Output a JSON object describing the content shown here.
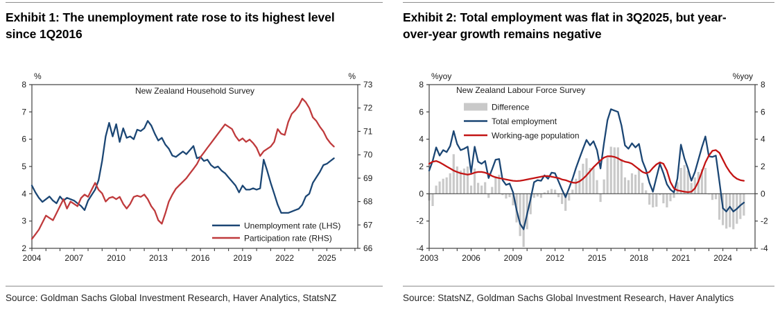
{
  "exhibits": [
    {
      "title": "Exhibit 1: The unemployment rate rose to its highest level since 1Q2016",
      "source": "Source: Goldman Sachs Global Investment Research, Haver Analytics, StatsNZ"
    },
    {
      "title": "Exhibit 2: Total employment was flat in 3Q2025, but year-over-year growth remains negative",
      "source": "Source: StatsNZ, Goldman Sachs Global Investment Research, Haver Analytics"
    }
  ],
  "colors": {
    "navy": "#1b4674",
    "red_muted": "#bf3a3c",
    "red_bright": "#c31414",
    "bar_gray": "#c9c9c9",
    "axis": "#3f3f3f",
    "zero_line": "#4d4d4d",
    "text": "#1a1a1a"
  },
  "chart_data": [
    {
      "type": "line",
      "inner_title": "New Zealand Household Survey",
      "inner_title_anchor": "middle",
      "left_axis_label": "%",
      "right_axis_label": "%",
      "xlim": [
        2004,
        2027.2
      ],
      "left_ylim": [
        2,
        8
      ],
      "right_ylim": [
        66,
        73
      ],
      "left_ticks": [
        2,
        3,
        4,
        5,
        6,
        7,
        8
      ],
      "right_ticks": [
        66,
        67,
        68,
        69,
        70,
        71,
        72,
        73
      ],
      "x_tick_step_minor": 1,
      "x_labeled_ticks": [
        2004,
        2007,
        2010,
        2013,
        2016,
        2019,
        2022,
        2025
      ],
      "zero_line": false,
      "legend_position": "bottom-right",
      "x_start": 2004.0,
      "x_step": 0.25,
      "series": [
        {
          "name": "Unemployment rate (LHS)",
          "kind": "line",
          "axis": "left",
          "color": "#1b4674",
          "values": [
            4.3,
            4.05,
            3.85,
            3.7,
            3.8,
            3.9,
            3.75,
            3.65,
            3.9,
            3.75,
            3.85,
            3.8,
            3.75,
            3.65,
            3.55,
            3.4,
            3.75,
            3.95,
            4.15,
            4.5,
            5.2,
            6.1,
            6.6,
            6.1,
            6.55,
            5.9,
            6.4,
            6.05,
            6.1,
            6.0,
            6.35,
            6.3,
            6.4,
            6.67,
            6.5,
            6.2,
            5.95,
            6.05,
            5.8,
            5.65,
            5.4,
            5.35,
            5.45,
            5.55,
            5.45,
            5.6,
            5.75,
            5.3,
            5.35,
            5.2,
            5.25,
            5.05,
            4.95,
            5.0,
            4.85,
            4.75,
            4.6,
            4.45,
            4.3,
            4.05,
            4.3,
            4.15,
            4.15,
            4.2,
            4.15,
            4.2,
            5.25,
            4.85,
            4.4,
            4.0,
            3.6,
            3.3,
            3.3,
            3.3,
            3.35,
            3.4,
            3.45,
            3.6,
            3.9,
            4.0,
            4.4,
            4.6,
            4.8,
            5.05,
            5.1,
            5.2,
            5.3
          ]
        },
        {
          "name": "Participation rate (RHS)",
          "kind": "line",
          "axis": "right",
          "color": "#bf3a3c",
          "values": [
            66.4,
            66.6,
            66.8,
            67.1,
            67.4,
            67.3,
            67.2,
            67.5,
            67.8,
            68.1,
            67.7,
            68.0,
            67.9,
            67.8,
            68.15,
            68.3,
            68.2,
            68.5,
            68.8,
            68.5,
            68.35,
            68.0,
            68.15,
            68.2,
            68.1,
            68.2,
            67.9,
            67.7,
            67.9,
            68.2,
            68.25,
            68.2,
            68.3,
            68.1,
            67.8,
            67.6,
            67.2,
            67.05,
            67.5,
            68.0,
            68.3,
            68.55,
            68.7,
            68.85,
            69.0,
            69.2,
            69.4,
            69.6,
            69.9,
            70.1,
            70.3,
            70.5,
            70.7,
            70.9,
            71.1,
            71.3,
            71.2,
            71.1,
            70.8,
            70.6,
            70.7,
            70.55,
            70.65,
            70.5,
            70.3,
            69.95,
            70.15,
            70.25,
            70.35,
            70.55,
            71.1,
            70.9,
            70.85,
            71.4,
            71.75,
            71.9,
            72.1,
            72.4,
            72.25,
            72.0,
            71.6,
            71.45,
            71.2,
            71.0,
            70.7,
            70.5,
            70.35
          ]
        }
      ]
    },
    {
      "type": "bar+line",
      "inner_title": "New Zealand Labour Force Survey",
      "inner_title_anchor": "start",
      "left_axis_label": "%yoy",
      "right_axis_label": "%yoy",
      "xlim": [
        2003,
        2026.3
      ],
      "left_ylim": [
        -4,
        8
      ],
      "right_ylim": [
        -4,
        8
      ],
      "left_ticks": [
        -4,
        -2,
        0,
        2,
        4,
        6,
        8
      ],
      "right_ticks": [
        -4,
        -2,
        0,
        2,
        4,
        6,
        8
      ],
      "x_tick_step_minor": 1,
      "x_labeled_ticks": [
        2003,
        2006,
        2009,
        2012,
        2015,
        2018,
        2021,
        2024
      ],
      "zero_line": true,
      "legend_position": "top-left",
      "x_start": 2003.0,
      "x_step": 0.25,
      "series": [
        {
          "name": "Difference",
          "kind": "bar",
          "axis": "left",
          "color": "#c9c9c9",
          "values": [
            -0.5,
            -0.9,
            0.6,
            0.9,
            1.1,
            1.2,
            1.5,
            2.9,
            2.0,
            1.7,
            1.85,
            2.0,
            0.6,
            1.85,
            0.8,
            0.6,
            0.85,
            -0.3,
            0.5,
            1.3,
            1.4,
            -0.1,
            -0.35,
            -0.25,
            -0.85,
            -2.1,
            -3.1,
            -3.9,
            -2.6,
            -1.5,
            -0.3,
            -0.2,
            -0.3,
            0.1,
            0.25,
            0.35,
            0.3,
            -0.25,
            -0.75,
            -1.25,
            -0.5,
            0.3,
            1.1,
            1.7,
            2.2,
            2.6,
            1.9,
            1.9,
            1.0,
            -0.6,
            1.05,
            2.65,
            3.45,
            3.4,
            3.4,
            2.55,
            1.2,
            1.0,
            1.5,
            1.4,
            1.85,
            0.8,
            0.25,
            -0.8,
            -1.0,
            -0.95,
            -0.1,
            -0.7,
            -1.0,
            -0.55,
            -0.3,
            0.85,
            1.9,
            2.1,
            1.7,
            0.8,
            1.2,
            1.6,
            1.8,
            1.9,
            -0.05,
            -0.45,
            -0.4,
            -1.9,
            -2.3,
            -2.55,
            -2.45,
            -2.6,
            -2.2,
            -1.85,
            -1.6
          ]
        },
        {
          "name": "Total employment",
          "kind": "line",
          "axis": "left",
          "color": "#1b4674",
          "values": [
            1.7,
            2.4,
            3.4,
            2.8,
            3.2,
            3.05,
            3.5,
            4.6,
            3.65,
            3.2,
            3.3,
            3.45,
            1.55,
            3.45,
            2.35,
            2.2,
            2.4,
            1.15,
            1.8,
            2.5,
            2.55,
            1.0,
            0.65,
            0.75,
            0.1,
            -1.2,
            -2.2,
            -2.6,
            -1.5,
            -0.4,
            0.85,
            1.0,
            0.95,
            1.35,
            1.1,
            1.55,
            1.5,
            0.9,
            0.3,
            -0.25,
            0.4,
            1.1,
            1.9,
            2.6,
            3.3,
            3.95,
            3.55,
            3.85,
            3.2,
            1.85,
            3.7,
            5.4,
            6.2,
            6.1,
            6.0,
            5.0,
            3.55,
            3.3,
            3.7,
            3.4,
            3.65,
            2.4,
            1.75,
            0.8,
            0.15,
            1.2,
            2.2,
            1.5,
            0.7,
            0.3,
            0.1,
            1.1,
            3.6,
            2.6,
            1.85,
            0.95,
            1.6,
            2.5,
            3.4,
            4.2,
            2.75,
            2.7,
            2.8,
            0.9,
            -1.05,
            -1.3,
            -0.95,
            -1.3,
            -1.1,
            -0.85,
            -0.65
          ]
        },
        {
          "name": "Working-age population",
          "kind": "line",
          "axis": "left",
          "color": "#c31414",
          "values": [
            2.2,
            2.35,
            2.4,
            2.3,
            2.15,
            2.0,
            1.85,
            1.7,
            1.6,
            1.5,
            1.45,
            1.4,
            1.45,
            1.55,
            1.6,
            1.6,
            1.55,
            1.45,
            1.3,
            1.2,
            1.15,
            1.1,
            1.05,
            1.0,
            0.95,
            0.93,
            0.95,
            1.0,
            1.05,
            1.1,
            1.15,
            1.2,
            1.25,
            1.3,
            1.3,
            1.25,
            1.2,
            1.15,
            1.05,
            1.0,
            0.9,
            0.82,
            0.8,
            0.9,
            1.1,
            1.35,
            1.65,
            1.95,
            2.2,
            2.45,
            2.65,
            2.75,
            2.75,
            2.7,
            2.6,
            2.45,
            2.35,
            2.3,
            2.2,
            2.0,
            1.8,
            1.6,
            1.5,
            1.6,
            1.9,
            2.15,
            2.3,
            2.2,
            1.7,
            0.85,
            0.4,
            0.25,
            0.2,
            0.15,
            0.12,
            0.15,
            0.4,
            0.9,
            1.6,
            2.3,
            2.8,
            3.15,
            3.2,
            3.0,
            2.5,
            2.0,
            1.6,
            1.3,
            1.1,
            1.0,
            0.95
          ]
        }
      ]
    }
  ]
}
